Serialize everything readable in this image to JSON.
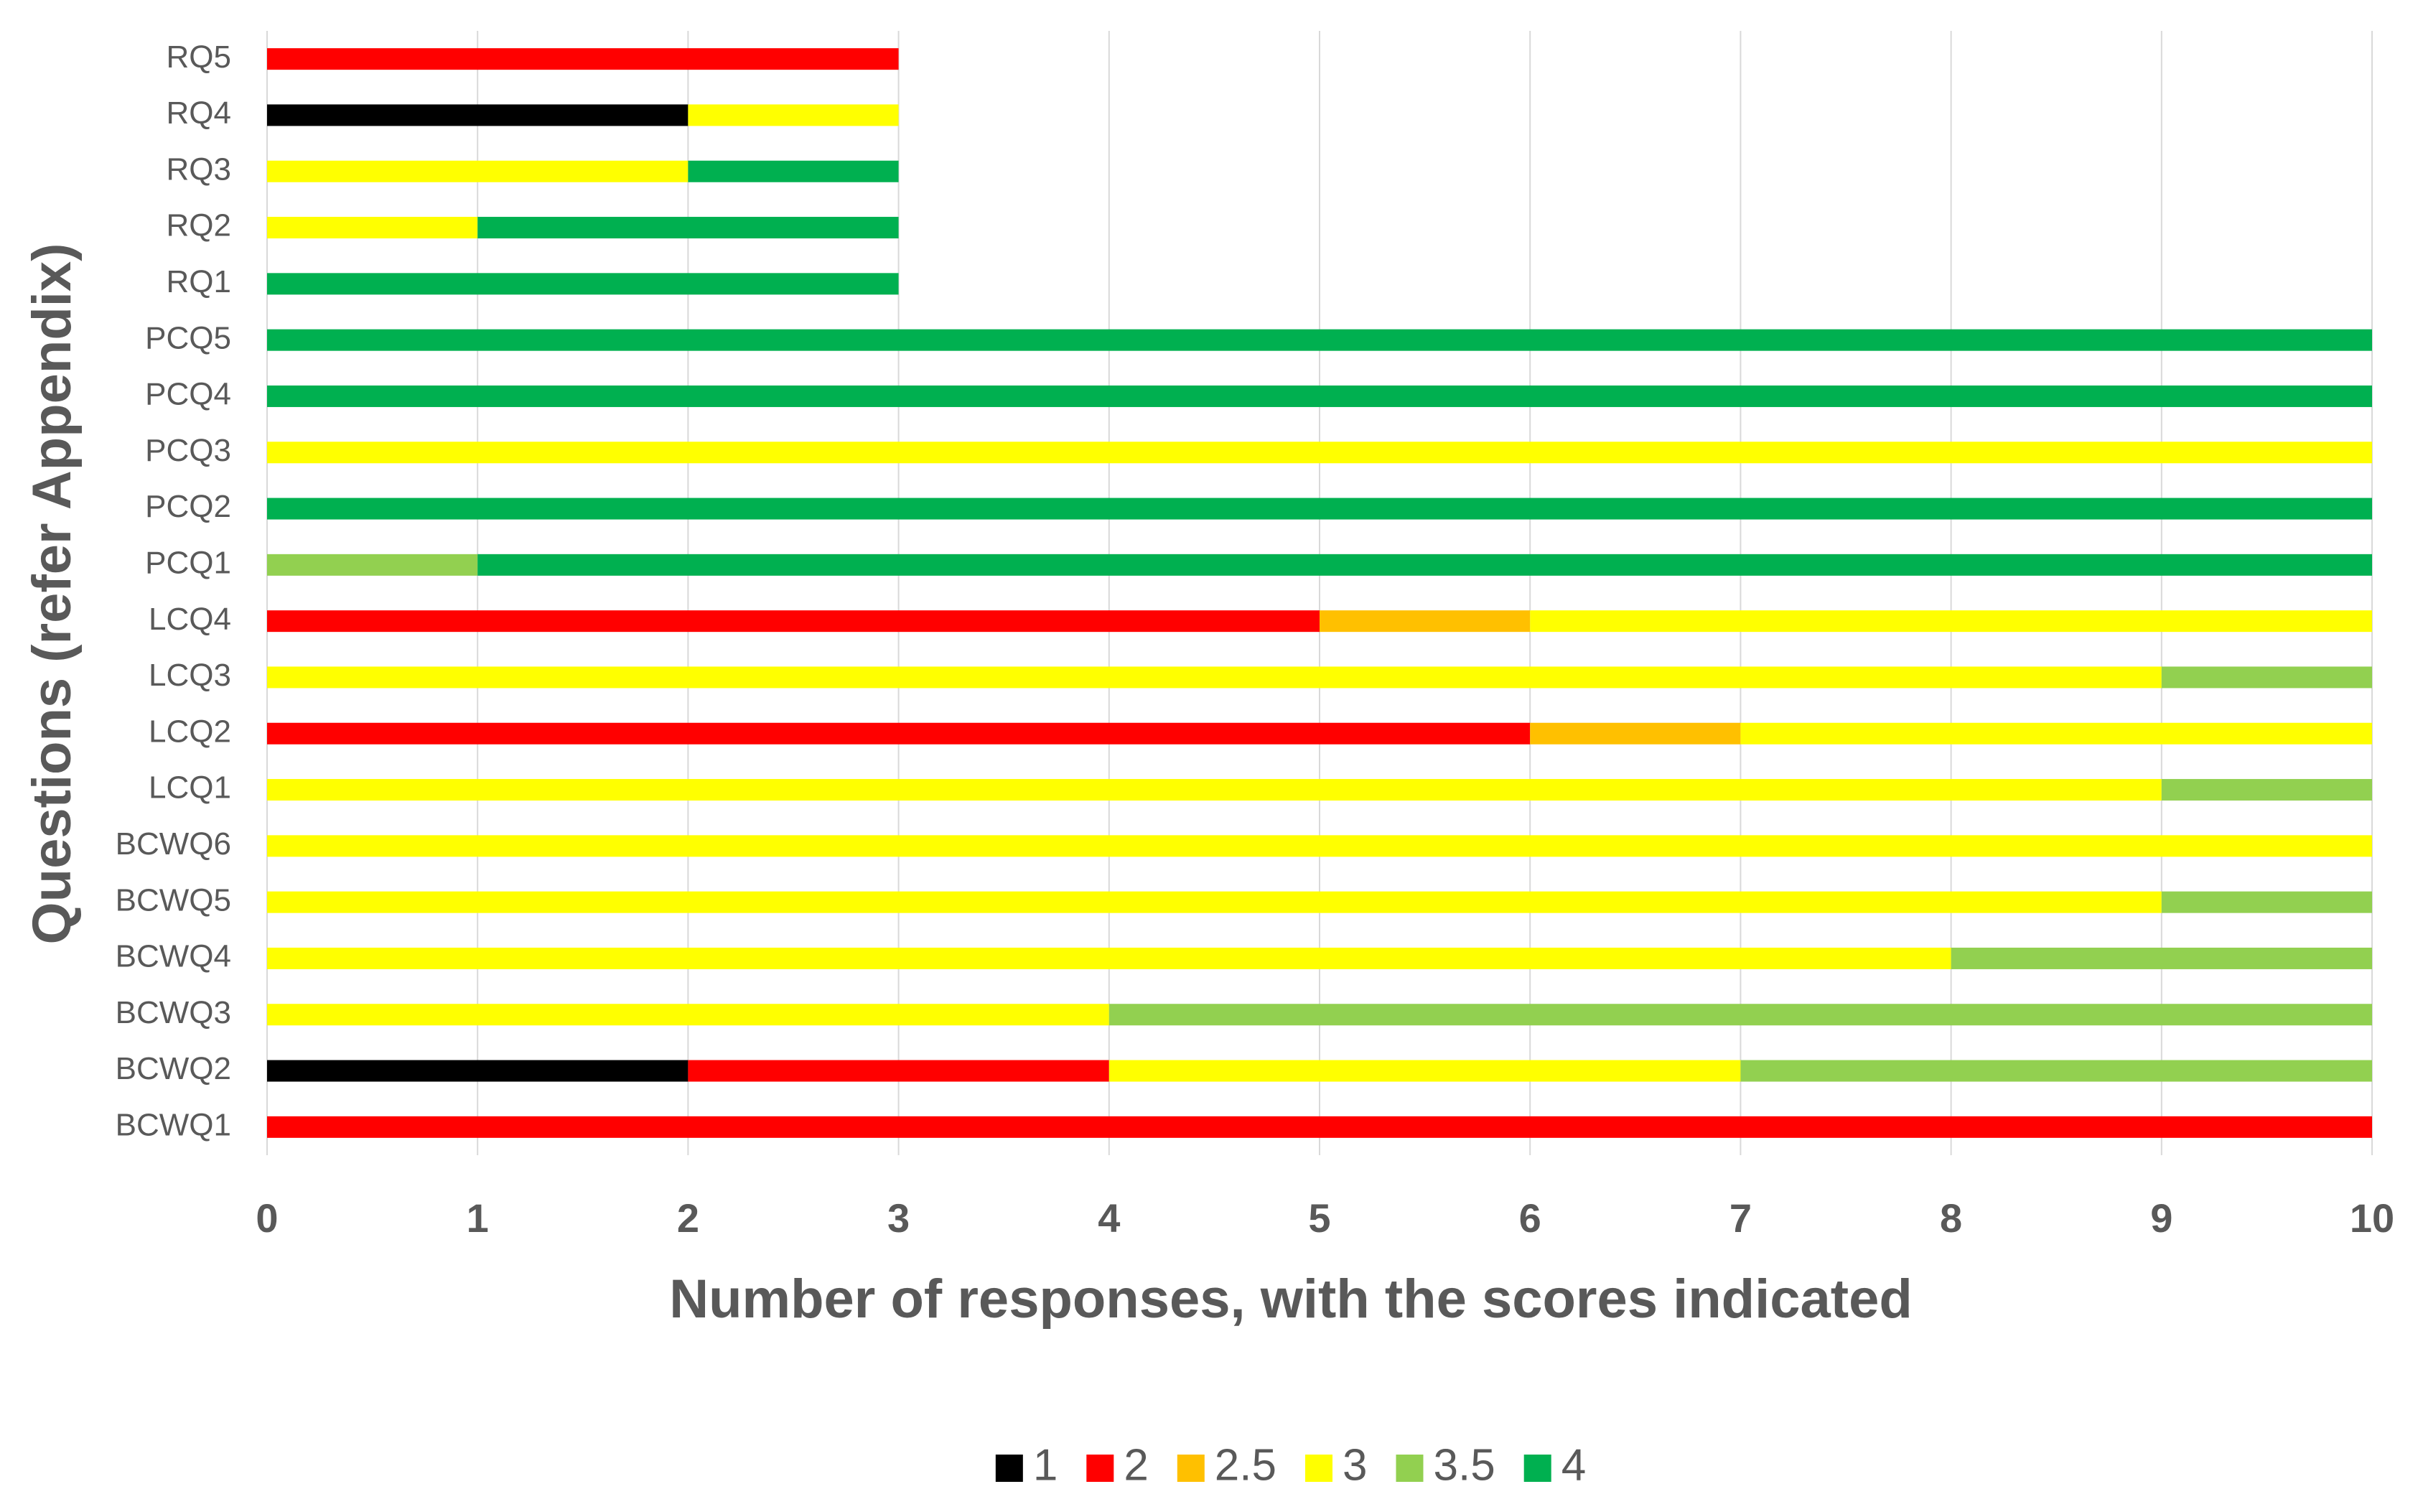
{
  "chart_data": {
    "type": "stacked_barh",
    "x_label": "Number of responses, with the scores indicated",
    "y_label": "Questions (refer Appendix)",
    "categories": [
      "BCWQ1",
      "BCWQ2",
      "BCWQ3",
      "BCWQ4",
      "BCWQ5",
      "BCWQ6",
      "LCQ1",
      "LCQ2",
      "LCQ3",
      "LCQ4",
      "PCQ1",
      "PCQ2",
      "PCQ3",
      "PCQ4",
      "PCQ5",
      "RQ1",
      "RQ2",
      "RQ3",
      "RQ4",
      "RQ5"
    ],
    "series": [
      {
        "name": "1",
        "color": "#000000",
        "values": [
          0,
          2,
          0,
          0,
          0,
          0,
          0,
          0,
          0,
          0,
          0,
          0,
          0,
          0,
          0,
          0,
          0,
          0,
          2,
          0
        ]
      },
      {
        "name": "2",
        "color": "#ff0000",
        "values": [
          10,
          2,
          0,
          0,
          0,
          0,
          0,
          6,
          0,
          5,
          0,
          0,
          0,
          0,
          0,
          0,
          0,
          0,
          0,
          3
        ]
      },
      {
        "name": "2.5",
        "color": "#ffc000",
        "values": [
          0,
          0,
          0,
          0,
          0,
          0,
          0,
          1,
          0,
          1,
          0,
          0,
          0,
          0,
          0,
          0,
          0,
          0,
          0,
          0
        ]
      },
      {
        "name": "3",
        "color": "#ffff00",
        "values": [
          0,
          3,
          4,
          8,
          9,
          10,
          9,
          3,
          9,
          4,
          0,
          0,
          10,
          0,
          0,
          0,
          1,
          2,
          1,
          0
        ]
      },
      {
        "name": "3.5",
        "color": "#92d050",
        "values": [
          0,
          3,
          6,
          2,
          1,
          0,
          1,
          0,
          1,
          0,
          1,
          0,
          0,
          0,
          0,
          0,
          0,
          0,
          0,
          0
        ]
      },
      {
        "name": "4",
        "color": "#00b050",
        "values": [
          0,
          0,
          0,
          0,
          0,
          0,
          0,
          0,
          0,
          0,
          9,
          10,
          0,
          10,
          10,
          3,
          2,
          1,
          0,
          0
        ]
      }
    ],
    "xlim": [
      0,
      10
    ],
    "xticks": [
      0,
      1,
      2,
      3,
      4,
      5,
      6,
      7,
      8,
      9,
      10
    ],
    "grid": true,
    "legend": "bottom"
  }
}
